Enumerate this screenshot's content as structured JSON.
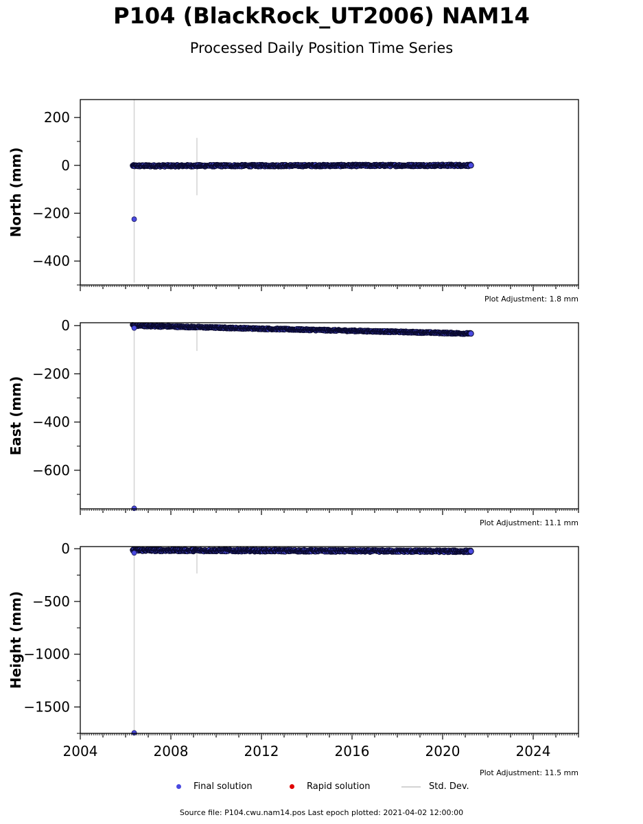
{
  "title": "P104 (BlackRock_UT2006) NAM14",
  "subtitle": "Processed Daily Position Time Series",
  "footer": "Source file: P104.cwu.nam14.pos  Last epoch plotted: 2021-04-02 12:00:00",
  "legend": {
    "final": "Final solution",
    "rapid": "Rapid solution",
    "std": "Std. Dev."
  },
  "colors": {
    "final": "#4a4ae0",
    "final_edge": "#0a0a30",
    "rapid": "#e00000",
    "std": "#d3d3d3"
  },
  "chart_data": [
    {
      "type": "scatter",
      "ylabel": "North (mm)",
      "adjustment": "Plot Adjustment: 1.8 mm",
      "xlim": [
        2004,
        2026
      ],
      "ylim": [
        -500,
        275
      ],
      "yticks": [
        200,
        0,
        -200,
        -400
      ],
      "ytick_labels": [
        "200",
        "0",
        "−200",
        "−400"
      ],
      "xticks": [],
      "series": [
        {
          "x_range": [
            2006.3,
            2021.25
          ],
          "y_start": -2,
          "y_end": 0,
          "y_spread": 5,
          "outliers": [
            {
              "x": 2006.38,
              "y": -225
            }
          ],
          "std_dev": [
            {
              "x": 2006.38,
              "low": -490,
              "high": 275
            },
            {
              "x": 2009.15,
              "low": -125,
              "high": 115
            }
          ]
        }
      ]
    },
    {
      "type": "scatter",
      "ylabel": "East (mm)",
      "adjustment": "Plot Adjustment: 11.1 mm",
      "xlim": [
        2004,
        2026
      ],
      "ylim": [
        -760,
        12
      ],
      "yticks": [
        0,
        -200,
        -400,
        -600
      ],
      "ytick_labels": [
        "0",
        "−200",
        "−400",
        "−600"
      ],
      "xticks": [],
      "series": [
        {
          "x_range": [
            2006.3,
            2021.25
          ],
          "y_start": 0,
          "y_end": -33,
          "y_spread": 4,
          "outliers": [
            {
              "x": 2006.38,
              "y": -758
            },
            {
              "x": 2006.38,
              "y": -10
            }
          ],
          "std_dev": [
            {
              "x": 2006.38,
              "low": -755,
              "high": 12
            },
            {
              "x": 2009.15,
              "low": -105,
              "high": 5
            }
          ]
        }
      ]
    },
    {
      "type": "scatter",
      "ylabel": "Height (mm)",
      "adjustment": "Plot Adjustment: 11.5 mm",
      "xlim": [
        2004,
        2026
      ],
      "ylim": [
        -1750,
        20
      ],
      "yticks": [
        0,
        -500,
        -1000,
        -1500
      ],
      "ytick_labels": [
        "0",
        "−500",
        "−1000",
        "−1500"
      ],
      "xticks": [
        2004,
        2008,
        2012,
        2016,
        2020,
        2024
      ],
      "series": [
        {
          "x_range": [
            2006.3,
            2021.25
          ],
          "y_start": -15,
          "y_end": -25,
          "y_spread": 12,
          "outliers": [
            {
              "x": 2006.38,
              "y": -1745
            },
            {
              "x": 2006.38,
              "y": -40
            }
          ],
          "std_dev": [
            {
              "x": 2006.38,
              "low": -1745,
              "high": 20
            },
            {
              "x": 2009.15,
              "low": -235,
              "high": 20
            }
          ]
        }
      ]
    }
  ]
}
